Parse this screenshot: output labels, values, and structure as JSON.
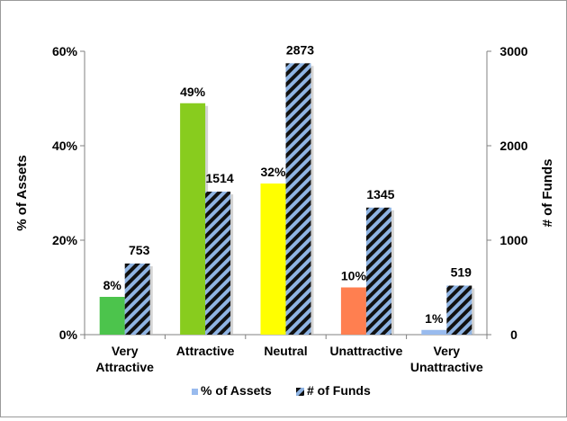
{
  "chart_data": {
    "type": "bar",
    "categories": [
      [
        "Very",
        "Attractive"
      ],
      [
        "Attractive"
      ],
      [
        "Neutral"
      ],
      [
        "Unattractive"
      ],
      [
        "Very",
        "Unattractive"
      ]
    ],
    "series": [
      {
        "name": "% of Assets",
        "axis": "left",
        "values": [
          8,
          49,
          32,
          10,
          1
        ],
        "value_labels": [
          "8%",
          "49%",
          "32%",
          "10%",
          "1%"
        ],
        "colors": [
          "#4cc44c",
          "#88cc1e",
          "#ffff00",
          "#ff7f50",
          "#99bbee"
        ]
      },
      {
        "name": "# of Funds",
        "axis": "right",
        "values": [
          753,
          1514,
          2873,
          1345,
          519
        ],
        "value_labels": [
          "753",
          "1514",
          "2873",
          "1345",
          "519"
        ],
        "pattern": "diagonal-stripes",
        "colors": [
          "#8fb4e3",
          "#111111"
        ]
      }
    ],
    "y_left": {
      "label": "% of Assets",
      "lim": [
        0,
        60
      ],
      "ticks": [
        0,
        20,
        40,
        60
      ],
      "tick_labels": [
        "0%",
        "20%",
        "40%",
        "60%"
      ]
    },
    "y_right": {
      "label": "# of Funds",
      "lim": [
        0,
        3000
      ],
      "ticks": [
        0,
        1000,
        2000,
        3000
      ],
      "tick_labels": [
        "0",
        "1000",
        "2000",
        "3000"
      ]
    },
    "legend": {
      "placement": "bottom",
      "entries": [
        "% of Assets",
        "# of Funds"
      ]
    },
    "grid": false
  }
}
